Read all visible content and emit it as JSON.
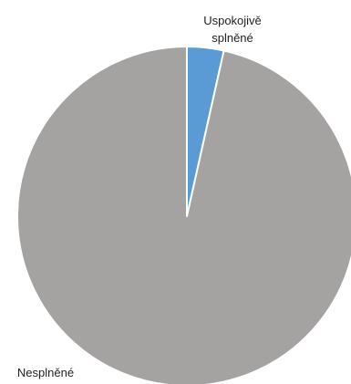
{
  "chart_data": {
    "type": "pie",
    "title": "",
    "start_angle_deg": 0,
    "direction": "clockwise",
    "slices": [
      {
        "label": "Uspokojivě splněné",
        "label_lines": [
          "Uspokojivě",
          "splněné"
        ],
        "value": 3.5,
        "color": "#5B9BD5"
      },
      {
        "label": "Nesplněné",
        "label_lines": [
          "Nesplněné"
        ],
        "value": 96.5,
        "color": "#A5A2A2"
      }
    ],
    "slice_border_color": "#FFFFFF",
    "legend": "none",
    "data_labels": "category-name"
  }
}
